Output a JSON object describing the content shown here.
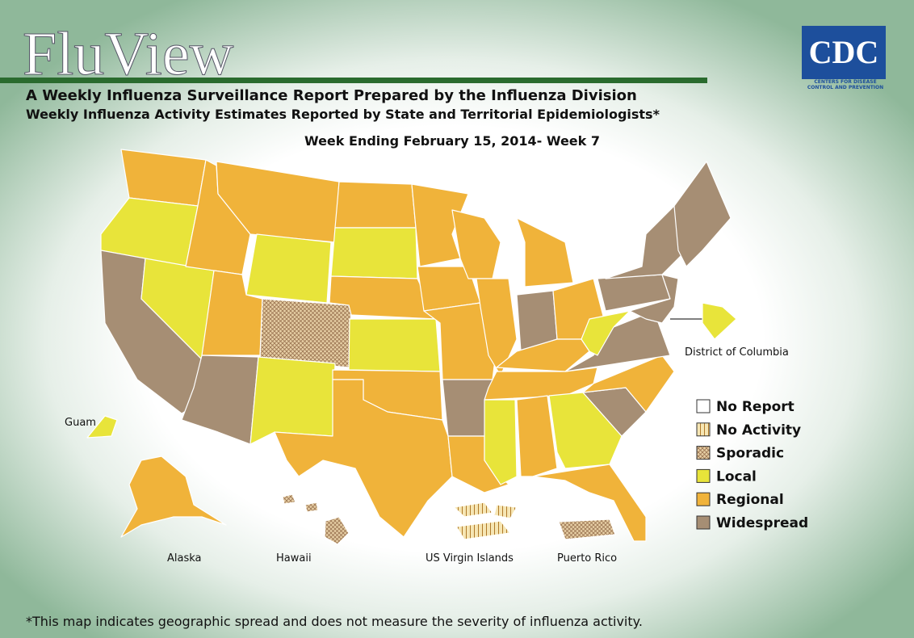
{
  "header": {
    "title": "FluView",
    "subtitle": "A Weekly Influenza Surveillance Report Prepared by the Influenza Division",
    "subtitle2": "Weekly Influenza Activity Estimates Reported by State and Territorial Epidemiologists*",
    "week": "Week Ending February 15, 2014- Week 7"
  },
  "logo": {
    "text": "CDC",
    "tagline1": "CENTERS FOR DISEASE",
    "tagline2": "CONTROL AND PREVENTION"
  },
  "map": {
    "labels": {
      "dc": "District of Columbia",
      "guam": "Guam",
      "alaska": "Alaska",
      "hawaii": "Hawaii",
      "usvi": "US Virgin Islands",
      "pr": "Puerto Rico"
    }
  },
  "legend": {
    "items": [
      {
        "label": "No Report",
        "color": "#ffffff"
      },
      {
        "label": "No Activity",
        "color": "#f6e6b4",
        "pattern": "stripes"
      },
      {
        "label": "Sporadic",
        "color": "#e7cfa5",
        "pattern": "crosshatch"
      },
      {
        "label": "Local",
        "color": "#e8e43a"
      },
      {
        "label": "Regional",
        "color": "#f0b33a"
      },
      {
        "label": "Widespread",
        "color": "#a68e74"
      }
    ]
  },
  "footnote": "*This map indicates geographic spread and does not measure the severity of influenza activity."
}
